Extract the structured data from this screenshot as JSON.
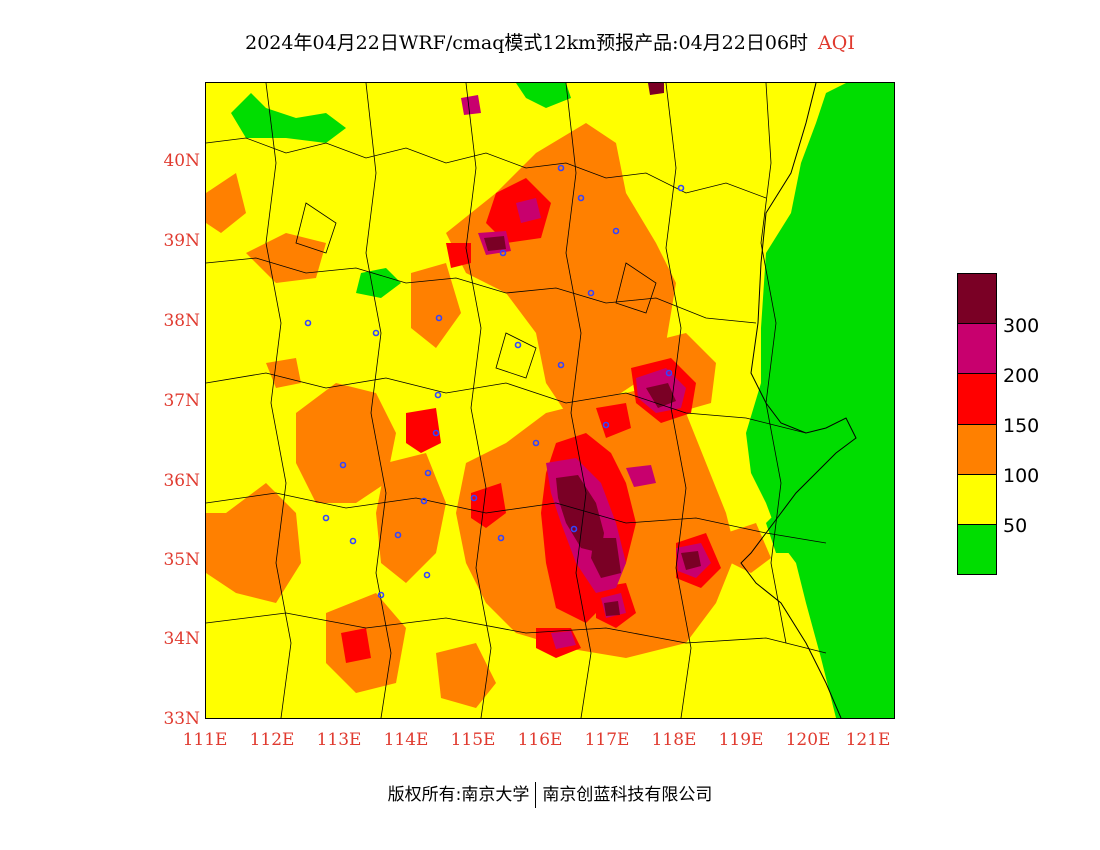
{
  "title": {
    "main": "2024年04月22日WRF/cmaq模式12km预报产品:04月22日06时",
    "suffix": "AQI"
  },
  "map": {
    "lat_ticks": [
      "40N",
      "39N",
      "38N",
      "37N",
      "36N",
      "35N",
      "34N",
      "33N"
    ],
    "lon_ticks": [
      "111E",
      "112E",
      "113E",
      "114E",
      "115E",
      "116E",
      "117E",
      "118E",
      "119E",
      "120E",
      "121E"
    ],
    "lat_range": [
      33,
      41
    ],
    "lon_range": [
      111,
      121.3
    ]
  },
  "legend": {
    "labels": [
      "300",
      "200",
      "150",
      "100",
      "50"
    ],
    "colors": [
      "#7a0025",
      "#c8006e",
      "#ff0000",
      "#ff8000",
      "#ffff00",
      "#00dd00"
    ]
  },
  "footer": {
    "copyright": "版权所有:南京大学",
    "company": "南京创蓝科技有限公司"
  }
}
